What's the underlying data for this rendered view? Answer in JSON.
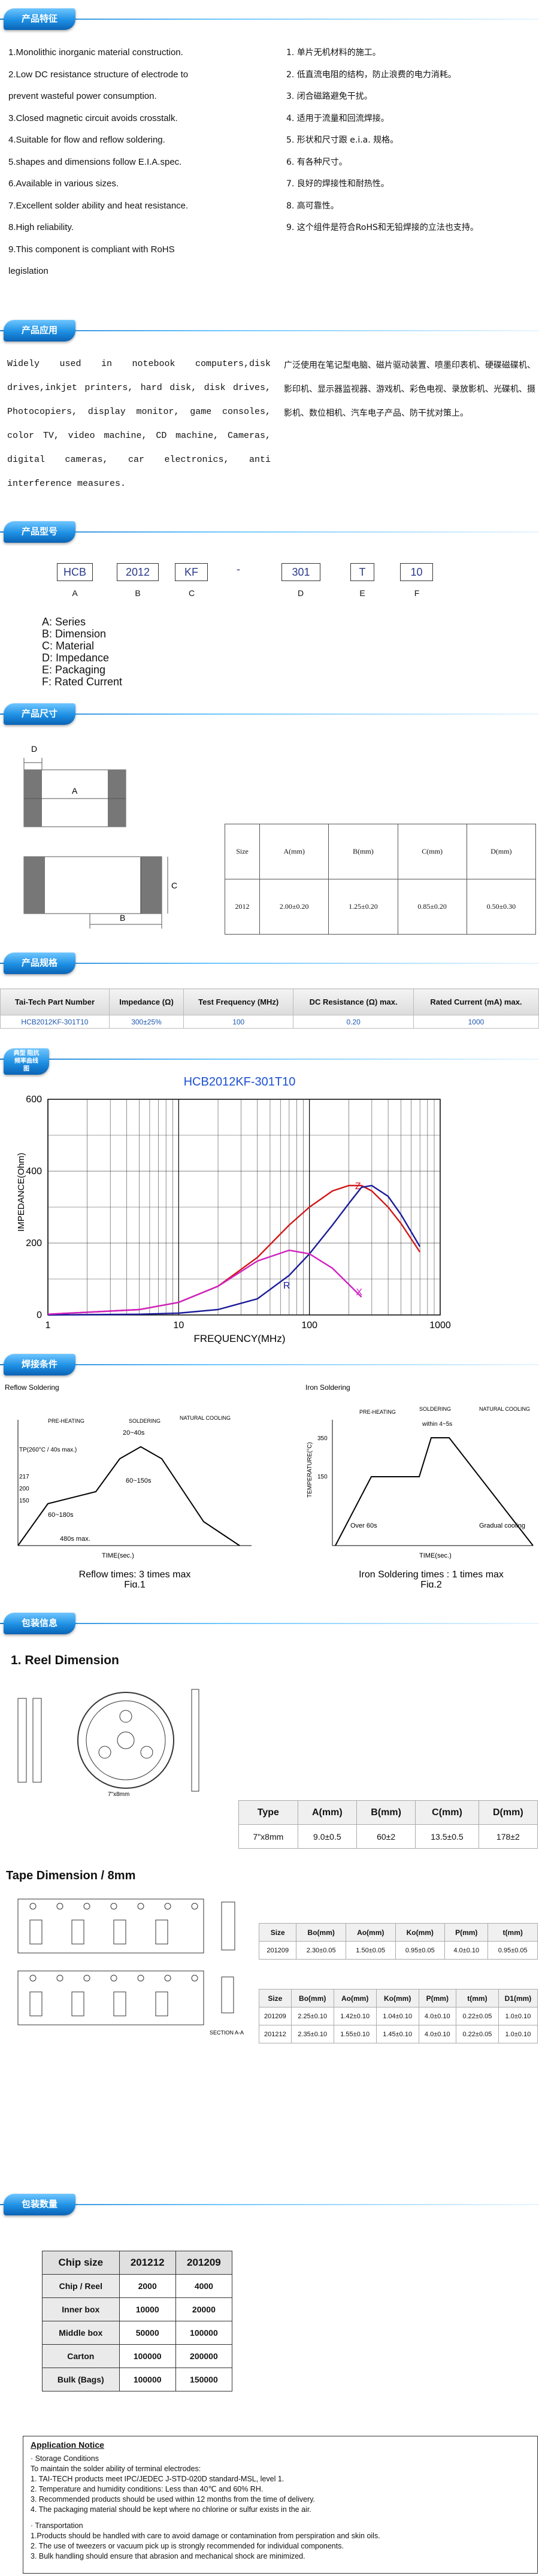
{
  "headers": {
    "features": "产品特征",
    "application": "产品应用",
    "part_number": "产品型号",
    "dimensions": "产品尺寸",
    "specification": "产品规格",
    "characteristics": "典型 阻抗 频率曲线图",
    "soldering": "焊接条件",
    "packaging": "包装信息",
    "quantity": "包装数量"
  },
  "features_en": [
    "1.Monolithic inorganic material construction.",
    "2.Low DC resistance structure of electrode to",
    "prevent wasteful power consumption.",
    "3.Closed magnetic circuit avoids crosstalk.",
    "4.Suitable for flow and reflow soldering.",
    "5.shapes and dimensions follow E.I.A.spec.",
    "6.Available in various sizes.",
    "7.Excellent solder ability and heat resistance.",
    "8.High reliability.",
    "9.This component is compliant with RoHS",
    "legislation"
  ],
  "features_zh": [
    "1. 单片无机材料的施工。",
    "2. 低直流电阻的结构，防止浪费的电力消耗。",
    "3. 闭合磁路避免干扰。",
    "4. 适用于流量和回流焊接。",
    "5. 形状和尺寸跟 e.i.a. 规格。",
    "6. 有各种尺寸。",
    "7. 良好的焊接性和耐热性。",
    "8. 高可靠性。",
    "9. 这个组件是符合RoHS和无铅焊接的立法也支持。"
  ],
  "application_en": "Widely used in notebook computers,disk drives,inkjet printers, hard disk, disk drives, Photocopiers, display monitor, game consoles, color TV, video machine, CD machine, Cameras, digital cameras, car electronics, anti interference measures.",
  "application_zh": "广泛使用在笔记型电脑、磁片驱动装置、喷墨印表机、硬碟磁碟机、影印机、显示器监视器、游戏机、彩色电视、录放影机、光碟机、摄影机、数位相机、汽车电子产品、防干扰对策上。",
  "part_number": {
    "parts": [
      "HCB",
      "2012",
      "KF",
      "-",
      "301",
      "T",
      "10"
    ],
    "letters": [
      "A",
      "B",
      "C",
      "",
      "D",
      "E",
      "F"
    ],
    "legend": [
      "A: Series",
      "B: Dimension",
      "C: Material",
      "D: Impedance",
      "E: Packaging",
      "F: Rated Current"
    ]
  },
  "dim_table": {
    "header": [
      "Size",
      "A(mm)",
      "B(mm)",
      "C(mm)",
      "D(mm)"
    ],
    "row": [
      "2012",
      "2.00±0.20",
      "1.25±0.20",
      "0.85±0.20",
      "0.50±0.30"
    ],
    "labels": {
      "a": "A",
      "b": "B",
      "c": "C",
      "d": "D"
    }
  },
  "spec_table": {
    "header": [
      "Tai-Tech Part Number",
      "Impedance (Ω)",
      "Test Frequency (MHz)",
      "DC Resistance (Ω) max.",
      "Rated Current (mA) max."
    ],
    "row": [
      "HCB2012KF-301T10",
      "300±25%",
      "100",
      "0.20",
      "1000"
    ]
  },
  "chart_data": {
    "type": "line",
    "title": "HCB2012KF-301T10",
    "xlabel": "FREQUENCY(MHz)",
    "ylabel": "IMPEDANCE(Ohm)",
    "xscale": "log",
    "xlim": [
      1,
      1000
    ],
    "ylim": [
      0,
      600
    ],
    "xticks": [
      "1",
      "10",
      "100",
      "1000"
    ],
    "yticks": [
      "0",
      "200",
      "400",
      "600"
    ],
    "series": [
      {
        "name": "Z",
        "color": "#d01818",
        "x": [
          1,
          5,
          10,
          20,
          40,
          70,
          100,
          150,
          200,
          250,
          300,
          400,
          500,
          700
        ],
        "y": [
          2,
          15,
          35,
          80,
          160,
          250,
          300,
          345,
          360,
          360,
          345,
          300,
          255,
          175
        ]
      },
      {
        "name": "R",
        "color": "#1a1a9a",
        "x": [
          1,
          5,
          10,
          20,
          40,
          70,
          100,
          150,
          200,
          250,
          300,
          400,
          500,
          700
        ],
        "y": [
          0,
          2,
          5,
          15,
          45,
          110,
          170,
          250,
          310,
          355,
          360,
          330,
          280,
          190
        ]
      },
      {
        "name": "X",
        "color": "#d020c0",
        "x": [
          1,
          5,
          10,
          20,
          40,
          70,
          100,
          150,
          200,
          250
        ],
        "y": [
          2,
          15,
          35,
          80,
          150,
          180,
          170,
          130,
          85,
          50
        ]
      }
    ]
  },
  "reflow": {
    "title": "Reflow Soldering",
    "labels": [
      "PRE-HEATING",
      "SOLDERING",
      "NATURAL COOLING",
      "TP(260°C / 40s max.)",
      "217",
      "200",
      "150",
      "60~180s",
      "20~40s",
      "60~150s",
      "480s max.",
      "TIME(sec.)"
    ],
    "caption1": "Reflow times: 3 times max",
    "caption2": "Fig.1"
  },
  "iron": {
    "title": "Iron Soldering",
    "labels": [
      "PRE-HEATING",
      "SOLDERING",
      "NATURAL COOLING",
      "within 4~5s",
      "350",
      "150",
      "Over 60s",
      "Gradual cooling",
      "TIME(sec.)",
      "TEMPERATURE(°C)"
    ],
    "caption1": "Iron Soldering times : 1 times max",
    "caption2": "Fig.2"
  },
  "reel": {
    "heading": "1. Reel Dimension",
    "reel_label": "7\"x8mm",
    "table_header": [
      "Type",
      "A(mm)",
      "B(mm)",
      "C(mm)",
      "D(mm)"
    ],
    "table_row": [
      "7\"x8mm",
      "9.0±0.5",
      "60±2",
      "13.5±0.5",
      "178±2"
    ]
  },
  "tape": {
    "heading": "Tape Dimension / 8mm",
    "t1_header": [
      "Size",
      "Bo(mm)",
      "Ao(mm)",
      "Ko(mm)",
      "P(mm)",
      "t(mm)"
    ],
    "t1_row": [
      "201209",
      "2.30±0.05",
      "1.50±0.05",
      "0.95±0.05",
      "4.0±0.10",
      "0.95±0.05"
    ],
    "t2_header": [
      "Size",
      "Bo(mm)",
      "Ao(mm)",
      "Ko(mm)",
      "P(mm)",
      "t(mm)",
      "D1(mm)"
    ],
    "t2_rows": [
      [
        "201209",
        "2.25±0.10",
        "1.42±0.10",
        "1.04±0.10",
        "4.0±0.10",
        "0.22±0.05",
        "1.0±0.10"
      ],
      [
        "201212",
        "2.35±0.10",
        "1.55±0.10",
        "1.45±0.10",
        "4.0±0.10",
        "0.22±0.05",
        "1.0±0.10"
      ]
    ],
    "section": "SECTION A-A"
  },
  "quantity": {
    "header": [
      "Chip size",
      "201212",
      "201209"
    ],
    "rows": [
      [
        "Chip / Reel",
        "2000",
        "4000"
      ],
      [
        "Inner box",
        "10000",
        "20000"
      ],
      [
        "Middle box",
        "50000",
        "100000"
      ],
      [
        "Carton",
        "100000",
        "200000"
      ],
      [
        "Bulk (Bags)",
        "100000",
        "150000"
      ]
    ]
  },
  "notice": {
    "title": "Application Notice",
    "lines": [
      "· Storage Conditions",
      "To maintain the solder ability of terminal electrodes:",
      "1. TAI-TECH products meet IPC/JEDEC J-STD-020D standard-MSL, level 1.",
      "2. Temperature and humidity conditions: Less than 40℃ and 60% RH.",
      "3. Recommended products should be used within 12 months from the time of delivery.",
      "4. The packaging material should be kept where no chlorine or sulfur exists in the air.",
      "",
      "· Transportation",
      "1.Products should be handled with care to avoid damage or contamination from perspiration and skin oils.",
      "2. The use of tweezers or vacuum pick up is strongly recommended for individual components.",
      "3. Bulk handling should ensure that abrasion and mechanical shock are minimized."
    ]
  }
}
